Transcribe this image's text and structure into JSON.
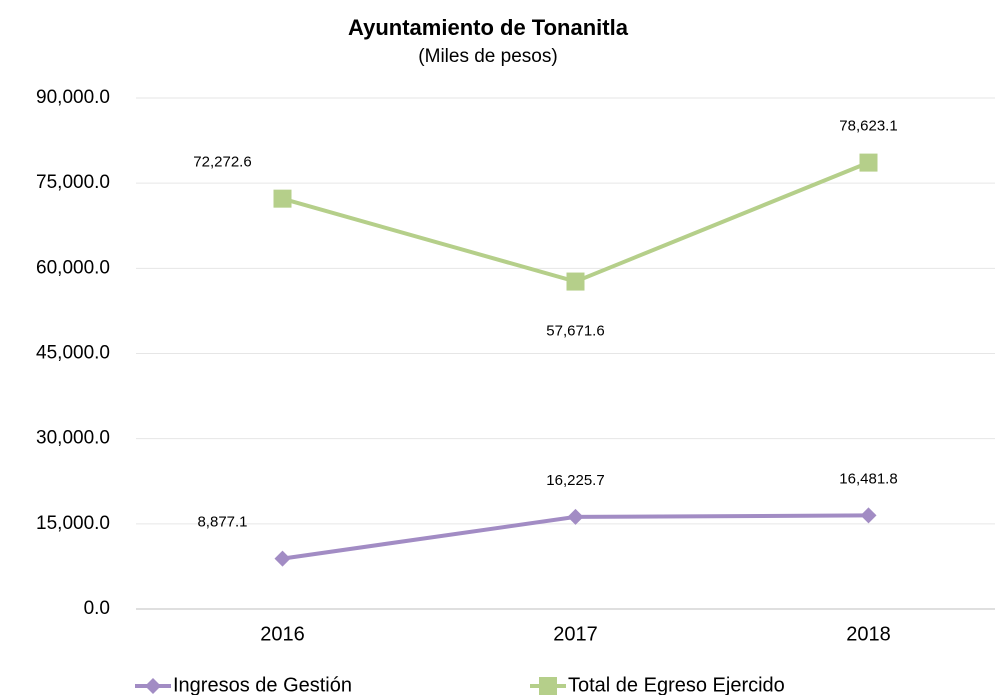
{
  "chart_data": {
    "type": "line",
    "title": "Ayuntamiento de Tonanitla",
    "subtitle": "(Miles de pesos)",
    "categories": [
      "2016",
      "2017",
      "2018"
    ],
    "series": [
      {
        "name": "Ingresos de Gestión",
        "color": "#a28cc4",
        "marker": "diamond",
        "values": [
          8877.1,
          16225.7,
          16481.8
        ],
        "value_labels": [
          "8,877.1",
          "16,225.7",
          "16,481.8"
        ]
      },
      {
        "name": "Total de Egreso Ejercido",
        "color": "#b5cf8a",
        "marker": "square",
        "values": [
          72272.6,
          57671.6,
          78623.1
        ],
        "value_labels": [
          "72,272.6",
          "57,671.6",
          "78,623.1"
        ]
      }
    ],
    "ylim": [
      0,
      90000
    ],
    "yticks": [
      {
        "value": 0,
        "label": "0.0"
      },
      {
        "value": 15000,
        "label": "15,000.0"
      },
      {
        "value": 30000,
        "label": "30,000.0"
      },
      {
        "value": 45000,
        "label": "45,000.0"
      },
      {
        "value": 60000,
        "label": "60,000.0"
      },
      {
        "value": 75000,
        "label": "75,000.0"
      },
      {
        "value": 90000,
        "label": "90,000.0"
      }
    ],
    "grid": true,
    "legend": "bottom"
  }
}
